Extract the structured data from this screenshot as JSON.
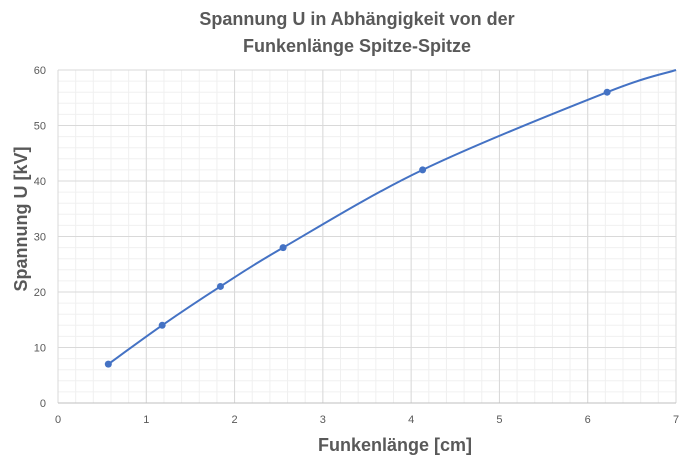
{
  "chart_data": {
    "type": "scatter",
    "title_lines": [
      "Spannung U in Abhängigkeit von der",
      "Funkenlänge Spitze-Spitze"
    ],
    "xlabel": "Funkenlänge [cm]",
    "ylabel": "Spannung U [kV]",
    "xlim": [
      0,
      7
    ],
    "ylim": [
      0,
      60
    ],
    "x_ticks": [
      "0",
      "1",
      "2",
      "3",
      "4",
      "5",
      "6",
      "7"
    ],
    "y_ticks": [
      "0",
      "10",
      "20",
      "30",
      "40",
      "50",
      "60"
    ],
    "grid": true,
    "minor_grid": true,
    "series": [
      {
        "color": "#4472c4",
        "points": [
          {
            "x": 0.57,
            "y": 7
          },
          {
            "x": 1.18,
            "y": 14
          },
          {
            "x": 1.84,
            "y": 21
          },
          {
            "x": 2.55,
            "y": 28
          },
          {
            "x": 4.13,
            "y": 42
          },
          {
            "x": 6.22,
            "y": 56
          }
        ],
        "trend_end": {
          "x": 7.0,
          "y": 60
        }
      }
    ]
  }
}
